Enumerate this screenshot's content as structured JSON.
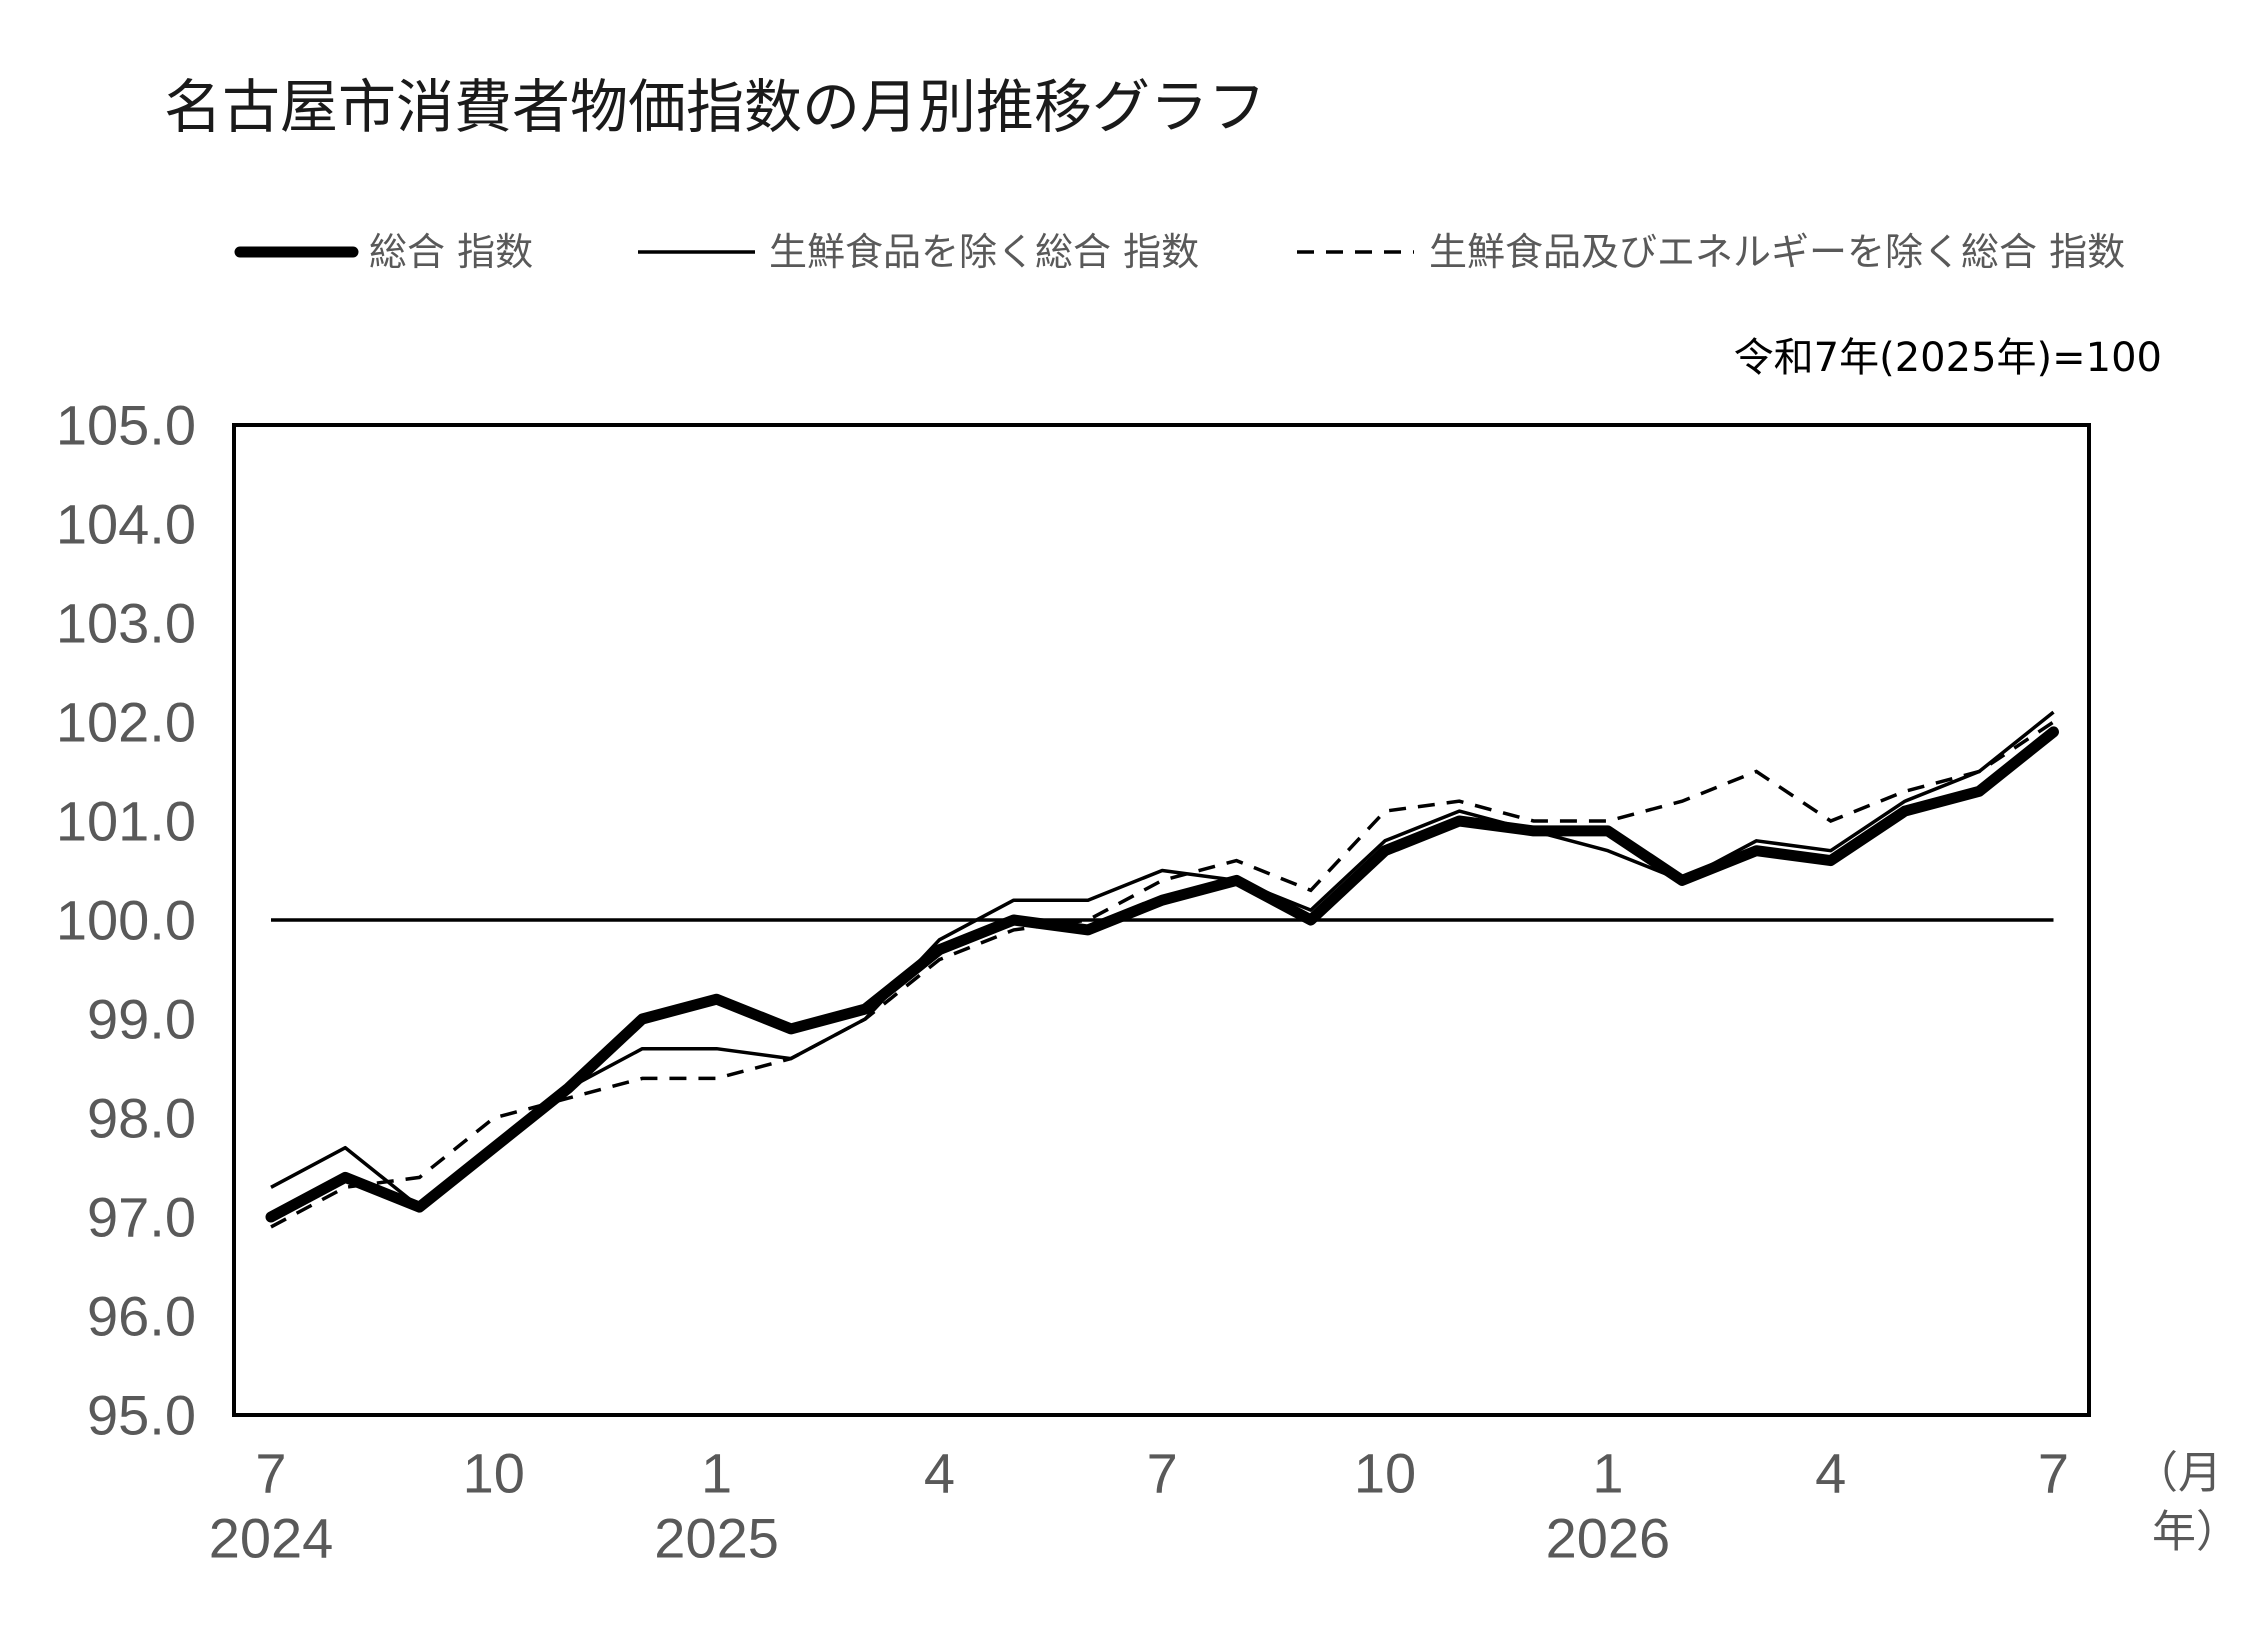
{
  "chart_data": {
    "type": "line",
    "title": "名古屋市消費者物価指数の月別推移グラフ",
    "note": "令和7年(2025年)=100",
    "legend": "top",
    "grid": false,
    "ylim": [
      95,
      105
    ],
    "y_ticks": [
      {
        "value": 105,
        "label": "105.0"
      },
      {
        "value": 104,
        "label": "104.0"
      },
      {
        "value": 103,
        "label": "103.0"
      },
      {
        "value": 102,
        "label": "102.0"
      },
      {
        "value": 101,
        "label": "101.0"
      },
      {
        "value": 100,
        "label": "100.0"
      },
      {
        "value": 99,
        "label": "99.0"
      },
      {
        "value": 98,
        "label": "98.0"
      },
      {
        "value": 97,
        "label": "97.0"
      },
      {
        "value": 96,
        "label": "96.0"
      },
      {
        "value": 95,
        "label": "95.0"
      }
    ],
    "x": [
      {
        "year": 2024,
        "month": 7
      },
      {
        "year": 2024,
        "month": 8
      },
      {
        "year": 2024,
        "month": 9
      },
      {
        "year": 2024,
        "month": 10
      },
      {
        "year": 2024,
        "month": 11
      },
      {
        "year": 2024,
        "month": 12
      },
      {
        "year": 2025,
        "month": 1
      },
      {
        "year": 2025,
        "month": 2
      },
      {
        "year": 2025,
        "month": 3
      },
      {
        "year": 2025,
        "month": 4
      },
      {
        "year": 2025,
        "month": 5
      },
      {
        "year": 2025,
        "month": 6
      },
      {
        "year": 2025,
        "month": 7
      },
      {
        "year": 2025,
        "month": 8
      },
      {
        "year": 2025,
        "month": 9
      },
      {
        "year": 2025,
        "month": 10
      },
      {
        "year": 2025,
        "month": 11
      },
      {
        "year": 2025,
        "month": 12
      },
      {
        "year": 2026,
        "month": 1
      },
      {
        "year": 2026,
        "month": 2
      },
      {
        "year": 2026,
        "month": 3
      },
      {
        "year": 2026,
        "month": 4
      },
      {
        "year": 2026,
        "month": 5
      },
      {
        "year": 2026,
        "month": 6
      },
      {
        "year": 2026,
        "month": 7
      }
    ],
    "x_ticks": [
      {
        "year": 2024,
        "month": 7,
        "label": "7",
        "year_label": "2024"
      },
      {
        "year": 2024,
        "month": 10,
        "label": "10"
      },
      {
        "year": 2025,
        "month": 1,
        "label": "1",
        "year_label": "2025"
      },
      {
        "year": 2025,
        "month": 4,
        "label": "4"
      },
      {
        "year": 2025,
        "month": 7,
        "label": "7"
      },
      {
        "year": 2025,
        "month": 10,
        "label": "10"
      },
      {
        "year": 2026,
        "month": 1,
        "label": "1",
        "year_label": "2026"
      },
      {
        "year": 2026,
        "month": 4,
        "label": "4"
      },
      {
        "year": 2026,
        "month": 7,
        "label": "7"
      }
    ],
    "x_unit": {
      "month": "（月",
      "year": "年）"
    },
    "reference_line": {
      "y": 100
    },
    "series": [
      {
        "name": "総合 指数",
        "color": "#000000",
        "values": [
          97.0,
          97.4,
          97.1,
          97.7,
          98.3,
          99.0,
          99.2,
          98.9,
          99.1,
          99.7,
          100.0,
          99.9,
          100.2,
          100.4,
          100.0,
          100.7,
          101.0,
          100.9,
          100.9,
          100.4,
          100.7,
          100.6,
          101.1,
          101.3,
          101.9
        ]
      },
      {
        "name": "生鮮食品を除く総合 指数",
        "color": "#000000",
        "values": [
          97.3,
          97.7,
          97.1,
          97.7,
          98.3,
          98.7,
          98.7,
          98.6,
          99.0,
          99.8,
          100.2,
          100.2,
          100.5,
          100.4,
          100.1,
          100.8,
          101.1,
          100.9,
          100.7,
          100.4,
          100.8,
          100.7,
          101.2,
          101.5,
          102.1
        ]
      },
      {
        "name": "生鮮食品及びエネルギーを除く総合 指数",
        "color": "#000000",
        "values": [
          96.9,
          97.3,
          97.4,
          98.0,
          98.2,
          98.4,
          98.4,
          98.6,
          99.0,
          99.6,
          99.9,
          100.0,
          100.4,
          100.6,
          100.3,
          101.1,
          101.2,
          101.0,
          101.0,
          101.2,
          101.5,
          101.0,
          101.3,
          101.5,
          102.0
        ]
      }
    ]
  }
}
